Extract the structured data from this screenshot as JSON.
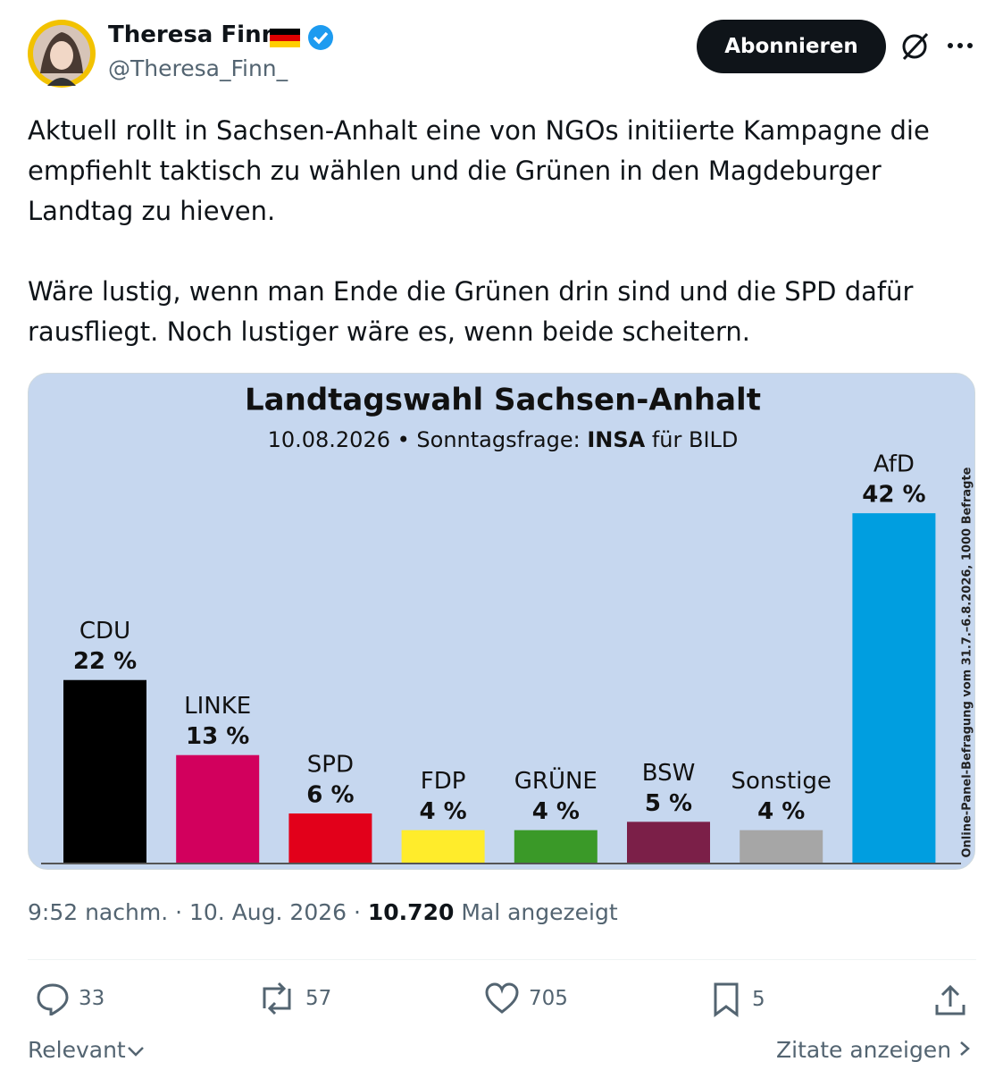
{
  "author": {
    "name": "Theresa Finn",
    "handle": "@Theresa_Finn_"
  },
  "follow_button": "Abonnieren",
  "text": [
    "Aktuell rollt in Sachsen-Anhalt eine von NGOs initiierte Kampagne die empfiehlt taktisch zu wählen und die Grünen in den Magdeburger Landtag zu hieven.",
    "Wäre lustig, wenn man Ende die Grünen drin sind und die SPD dafür rausfliegt. Noch lustiger wäre es, wenn beide scheitern."
  ],
  "chart_data": {
    "type": "bar",
    "title": "Landtagswahl Sachsen-Anhalt",
    "subtitle": [
      "10.08.2026 • Sonntagsfrage: ",
      "INSA",
      " für BILD"
    ],
    "note": "Online-Panel-Befragung vom 31.7.–6.8.2026, 1000 Befragte",
    "categories": [
      "CDU",
      "LINKE",
      "SPD",
      "FDP",
      "GRÜNE",
      "BSW",
      "Sonstige",
      "AfD"
    ],
    "values": [
      22,
      13,
      6,
      4,
      4,
      5,
      4,
      42
    ],
    "value_labels": [
      "22 %",
      "13 %",
      "6 %",
      "4 %",
      "4 %",
      "5 %",
      "4 %",
      "42 %"
    ],
    "colors": [
      "#000000",
      "#d2005d",
      "#e2001a",
      "#ffec2b",
      "#3a9928",
      "#7b1f48",
      "#a6a6a6",
      "#009ee0"
    ]
  },
  "meta": {
    "time": "9:52 nachm.",
    "date": "10. Aug. 2026",
    "views": "10.720",
    "views_label": "Mal angezeigt"
  },
  "actions": {
    "replies": "33",
    "reposts": "57",
    "likes": "705",
    "bookmarks": "5"
  },
  "footer": {
    "sort": "Relevant",
    "quotes": "Zitate anzeigen"
  }
}
